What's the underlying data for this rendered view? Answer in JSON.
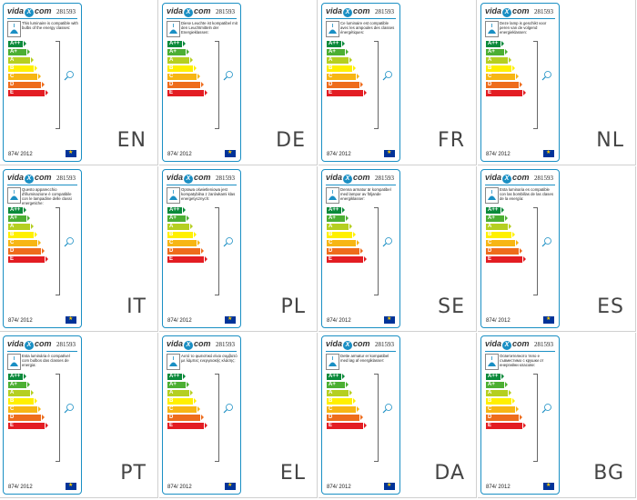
{
  "brand": {
    "left": "vida",
    "mid": "X",
    "right": "com"
  },
  "label_code": "281593",
  "regulation": "874/ 2012",
  "classes": [
    {
      "label": "A++",
      "color": "#0b8a3b"
    },
    {
      "label": "A+",
      "color": "#4caf33"
    },
    {
      "label": "A",
      "color": "#b5cf21"
    },
    {
      "label": "B",
      "color": "#fff000"
    },
    {
      "label": "C",
      "color": "#f7b614"
    },
    {
      "label": "D",
      "color": "#ee6c1c"
    },
    {
      "label": "E",
      "color": "#e31d23"
    }
  ],
  "labels": [
    {
      "lang": "EN",
      "text": "This luminaire is compatible with bulbs of the energy classes:"
    },
    {
      "lang": "DE",
      "text": "Diese Leuchte ist kompatibel mit den Leuchtmitteln der Energieklassen:"
    },
    {
      "lang": "FR",
      "text": "Ce luminaire est compatible avec les ampoules des classes énergétiques:"
    },
    {
      "lang": "NL",
      "text": "Deze lamp is geschikt voor peren van de volgend energieklassen:"
    },
    {
      "lang": "IT",
      "text": "Questo apparecchio d'illuminazione è compatibile con le lampadine delle classi energetiche:"
    },
    {
      "lang": "PL",
      "text": "Oprawa oświetleniowa jest kompatybilna z żarówkami klas energetycznych:"
    },
    {
      "lang": "SE",
      "text": "Denna armatur är kompatibel med lampor av följande energiklasser:"
    },
    {
      "lang": "ES",
      "text": "Esta luminaria es compatible con las bombillas de las clases de la energía:"
    },
    {
      "lang": "PT",
      "text": "Esta luminária é compatível com bulbos das classes de energia:"
    },
    {
      "lang": "EL",
      "text": "Αυτό το φωτιστικό είναι συμβατό με λάμπες ενεργειακής κλάσης:"
    },
    {
      "lang": "DA",
      "text": "Dette armatur er kompatibel med løg af energiklasser:"
    },
    {
      "lang": "BG",
      "text": "Осветителното тяло е съвместимо с крушки от енергийни класове:"
    }
  ]
}
